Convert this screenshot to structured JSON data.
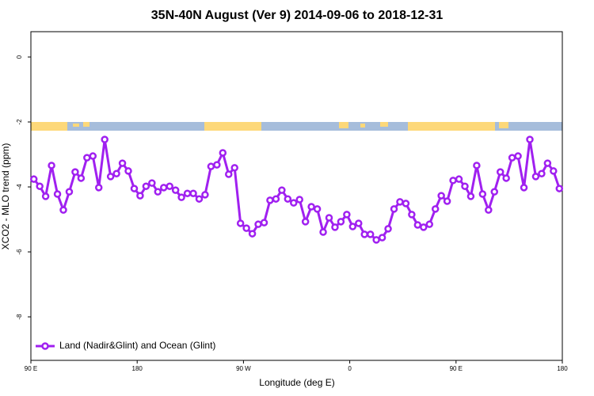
{
  "chart_data": {
    "type": "line",
    "title": "35N-40N August (Ver 9)   2014-09-06 to 2018-12-31",
    "x_label": "Longitude (deg E)",
    "y_label": "XCO2 - MLO trend (ppm)",
    "xlim": [
      90,
      540
    ],
    "ylim": [
      -9.34,
      0.78
    ],
    "xticks": [
      {
        "value": 90,
        "label": "90 E"
      },
      180,
      {
        "value": 270,
        "label": "90 W"
      },
      {
        "value": 360,
        "label": "0"
      },
      {
        "value": 450,
        "label": "90 E"
      },
      {
        "value": 540,
        "label": "180"
      }
    ],
    "yticks": [
      0,
      -2,
      -4,
      -6,
      -8
    ],
    "legend": "bottomleft",
    "series": [
      {
        "name": "Land (Nadir&Glint) and Ocean (Glint)",
        "color": "#a020f0",
        "x": [
          92.5,
          97.5,
          102.5,
          107.5,
          112.5,
          117.5,
          122.5,
          127.5,
          132.5,
          137.5,
          142.5,
          147.5,
          152.5,
          157.5,
          162.5,
          167.5,
          172.5,
          177.5,
          182.5,
          187.5,
          192.5,
          197.5,
          202.5,
          207.5,
          212.5,
          217.5,
          222.5,
          227.5,
          232.5,
          237.5,
          242.5,
          247.5,
          252.5,
          257.5,
          262.5,
          267.5,
          272.5,
          277.5,
          282.5,
          287.5,
          292.5,
          297.5,
          302.5,
          307.5,
          312.5,
          317.5,
          322.5,
          327.5,
          332.5,
          337.5,
          342.5,
          347.5,
          352.5,
          357.5,
          362.5,
          367.5,
          372.5,
          377.5,
          382.5,
          387.5,
          392.5,
          397.5,
          402.5,
          407.5,
          412.5,
          417.5,
          422.5,
          427.5,
          432.5,
          437.5,
          442.5,
          447.5,
          452.5,
          457.5,
          462.5,
          467.5,
          472.5,
          477.5,
          482.5,
          487.5,
          492.5,
          497.5,
          502.5,
          507.5,
          512.5,
          517.5,
          522.5,
          527.5,
          532.5,
          537.5
        ],
        "values": [
          -3.76,
          -3.98,
          -4.29,
          -3.34,
          -4.22,
          -4.71,
          -4.15,
          -3.54,
          -3.73,
          -3.1,
          -3.05,
          -4.02,
          -2.54,
          -3.68,
          -3.59,
          -3.27,
          -3.51,
          -4.05,
          -4.27,
          -3.98,
          -3.88,
          -4.15,
          -4.02,
          -3.98,
          -4.1,
          -4.32,
          -4.2,
          -4.2,
          -4.37,
          -4.24,
          -3.37,
          -3.32,
          -2.95,
          -3.61,
          -3.41,
          -5.12,
          -5.27,
          -5.44,
          -5.15,
          -5.1,
          -4.41,
          -4.37,
          -4.1,
          -4.37,
          -4.49,
          -4.39,
          -5.07,
          -4.61,
          -4.68,
          -5.39,
          -4.95,
          -5.24,
          -5.07,
          -4.85,
          -5.22,
          -5.12,
          -5.46,
          -5.46,
          -5.63,
          -5.56,
          -5.29,
          -4.68,
          -4.46,
          -4.51,
          -4.85,
          -5.17,
          -5.24,
          -5.15,
          -4.68,
          -4.27,
          -4.44,
          -3.8,
          -3.76,
          -3.98,
          -4.29,
          -3.34,
          -4.22,
          -4.71,
          -4.15,
          -3.54,
          -3.73,
          -3.1,
          -3.05,
          -4.02,
          -2.54,
          -3.68,
          -3.59,
          -3.27,
          -3.51,
          -4.05
        ]
      }
    ]
  }
}
